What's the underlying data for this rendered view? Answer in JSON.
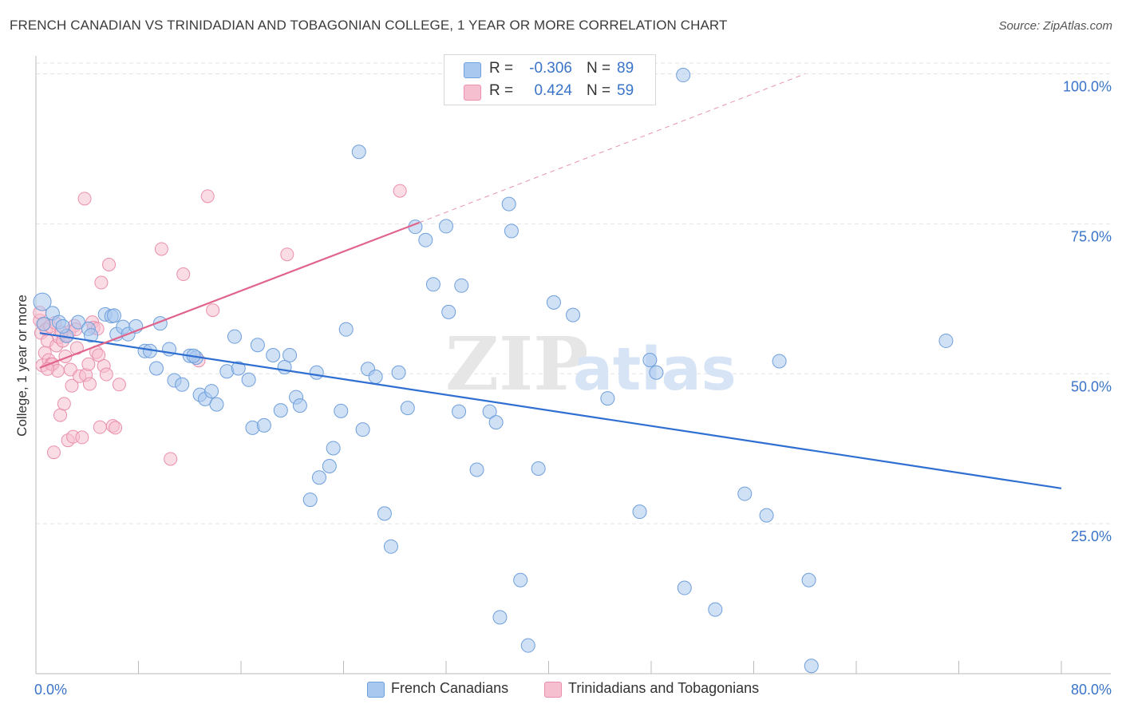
{
  "header": {
    "title": "FRENCH CANADIAN VS TRINIDADIAN AND TOBAGONIAN COLLEGE, 1 YEAR OR MORE CORRELATION CHART",
    "source": "Source: ZipAtlas.com"
  },
  "legend_top": {
    "rows": [
      {
        "r_label": "R =",
        "r_value": "-0.306",
        "n_label": "N =",
        "n_value": "89"
      },
      {
        "r_label": "R =",
        "r_value": "0.424",
        "n_label": "N =",
        "n_value": "59"
      }
    ]
  },
  "legend_bottom": {
    "items": [
      "French Canadians",
      "Trinidadians and Tobagonians"
    ]
  },
  "watermark": {
    "zip": "ZIP",
    "atlas": "atlas"
  },
  "colors": {
    "blue_fill": "#a9c8ef",
    "blue_stroke": "#6f9fdb",
    "blue_line": "#2f6fd1",
    "pink_fill": "#f6bfd0",
    "pink_stroke": "#ea8fab",
    "pink_line": "#e0648b",
    "tick_text": "#3a74c8",
    "grid": "#e3e3e3"
  },
  "chart_data": {
    "type": "scatter",
    "title": "FRENCH CANADIAN VS TRINIDADIAN AND TOBAGONIAN COLLEGE, 1 YEAR OR MORE CORRELATION CHART",
    "xlabel": "",
    "ylabel": "College, 1 year or more",
    "xlim": [
      0,
      80
    ],
    "ylim": [
      0,
      103
    ],
    "x_tick_labels": [
      "0.0%",
      "80.0%"
    ],
    "y_ticks": [
      25,
      50,
      75,
      100
    ],
    "y_tick_labels": [
      "25.0%",
      "50.0%",
      "75.0%",
      "100.0%"
    ],
    "grid": true,
    "legend_position": "top-center",
    "series": [
      {
        "name": "French Canadians",
        "color": "#6f9fdb",
        "R": -0.306,
        "N": 89,
        "trend": {
          "x": [
            0.3,
            80
          ],
          "y": [
            56.8,
            30.9
          ]
        },
        "points": [
          [
            0.5,
            62.0
          ],
          [
            0.6,
            58.3
          ],
          [
            1.3,
            60.1
          ],
          [
            1.8,
            58.6
          ],
          [
            2.4,
            56.3
          ],
          [
            3.3,
            58.6
          ],
          [
            4.1,
            57.5
          ],
          [
            4.3,
            56.4
          ],
          [
            5.4,
            59.9
          ],
          [
            5.9,
            59.6
          ],
          [
            6.3,
            56.6
          ],
          [
            6.8,
            57.8
          ],
          [
            7.2,
            56.6
          ],
          [
            7.8,
            57.9
          ],
          [
            8.5,
            53.8
          ],
          [
            8.9,
            53.8
          ],
          [
            9.4,
            50.9
          ],
          [
            9.7,
            58.4
          ],
          [
            10.4,
            54.1
          ],
          [
            10.8,
            48.9
          ],
          [
            11.4,
            48.2
          ],
          [
            12.0,
            53.0
          ],
          [
            12.5,
            52.7
          ],
          [
            12.8,
            46.5
          ],
          [
            13.2,
            45.8
          ],
          [
            13.7,
            47.1
          ],
          [
            14.1,
            44.9
          ],
          [
            14.9,
            50.4
          ],
          [
            15.5,
            56.2
          ],
          [
            15.8,
            50.9
          ],
          [
            16.6,
            49.0
          ],
          [
            16.9,
            41.0
          ],
          [
            17.3,
            54.8
          ],
          [
            17.8,
            41.4
          ],
          [
            18.5,
            53.1
          ],
          [
            19.1,
            43.9
          ],
          [
            19.4,
            51.1
          ],
          [
            19.8,
            53.1
          ],
          [
            20.3,
            46.1
          ],
          [
            20.6,
            44.7
          ],
          [
            21.4,
            29.0
          ],
          [
            21.9,
            50.2
          ],
          [
            22.1,
            32.7
          ],
          [
            22.9,
            34.6
          ],
          [
            23.2,
            37.6
          ],
          [
            23.8,
            43.8
          ],
          [
            24.2,
            57.4
          ],
          [
            25.2,
            87.0
          ],
          [
            25.5,
            40.7
          ],
          [
            25.9,
            50.8
          ],
          [
            26.5,
            49.5
          ],
          [
            27.2,
            26.7
          ],
          [
            27.7,
            21.2
          ],
          [
            28.3,
            50.2
          ],
          [
            29.0,
            44.3
          ],
          [
            29.6,
            74.5
          ],
          [
            30.4,
            72.3
          ],
          [
            31.0,
            64.9
          ],
          [
            32.0,
            74.6
          ],
          [
            32.2,
            60.3
          ],
          [
            33.0,
            43.7
          ],
          [
            33.2,
            64.7
          ],
          [
            34.4,
            34.0
          ],
          [
            35.4,
            43.7
          ],
          [
            35.9,
            41.9
          ],
          [
            36.2,
            9.4
          ],
          [
            36.9,
            78.3
          ],
          [
            37.1,
            73.8
          ],
          [
            37.8,
            15.6
          ],
          [
            38.4,
            4.7
          ],
          [
            39.2,
            34.2
          ],
          [
            40.4,
            61.9
          ],
          [
            41.9,
            59.8
          ],
          [
            44.6,
            45.9
          ],
          [
            47.1,
            27.0
          ],
          [
            47.9,
            52.3
          ],
          [
            48.4,
            50.2
          ],
          [
            50.5,
            99.8
          ],
          [
            50.6,
            14.3
          ],
          [
            53.0,
            10.7
          ],
          [
            55.3,
            30.0
          ],
          [
            57.0,
            26.4
          ],
          [
            58.0,
            52.1
          ],
          [
            60.3,
            15.6
          ],
          [
            60.5,
            1.3
          ],
          [
            71.0,
            55.5
          ],
          [
            2.1,
            57.9
          ],
          [
            6.1,
            59.7
          ],
          [
            12.3,
            53.0
          ]
        ]
      },
      {
        "name": "Trinidadians and Tobagonians",
        "color": "#ea8fab",
        "R": 0.424,
        "N": 59,
        "trend": {
          "x": [
            0.3,
            29.9
          ],
          "y": [
            51.0,
            75.2
          ]
        },
        "trend_extension": {
          "x": [
            29.9,
            60
          ],
          "y": [
            75.2,
            100
          ]
        },
        "points": [
          [
            0.3,
            58.9
          ],
          [
            0.4,
            56.8
          ],
          [
            0.5,
            51.4
          ],
          [
            0.6,
            58.3
          ],
          [
            0.7,
            53.5
          ],
          [
            0.8,
            57.4
          ],
          [
            0.9,
            55.5
          ],
          [
            1.0,
            52.3
          ],
          [
            1.1,
            57.9
          ],
          [
            1.2,
            51.6
          ],
          [
            1.3,
            51.6
          ],
          [
            1.5,
            58.5
          ],
          [
            1.6,
            54.7
          ],
          [
            1.7,
            50.5
          ],
          [
            1.8,
            56.1
          ],
          [
            1.9,
            43.1
          ],
          [
            2.1,
            55.5
          ],
          [
            2.2,
            45.0
          ],
          [
            2.3,
            52.9
          ],
          [
            2.4,
            56.4
          ],
          [
            2.5,
            38.9
          ],
          [
            2.6,
            57.0
          ],
          [
            2.7,
            50.7
          ],
          [
            2.8,
            48.0
          ],
          [
            2.9,
            39.5
          ],
          [
            3.0,
            58.0
          ],
          [
            3.1,
            57.4
          ],
          [
            3.2,
            54.3
          ],
          [
            3.4,
            49.6
          ],
          [
            3.6,
            39.4
          ],
          [
            3.8,
            79.2
          ],
          [
            3.9,
            49.8
          ],
          [
            4.1,
            51.6
          ],
          [
            4.2,
            48.3
          ],
          [
            4.4,
            58.6
          ],
          [
            4.5,
            57.7
          ],
          [
            4.7,
            53.6
          ],
          [
            4.9,
            53.1
          ],
          [
            5.0,
            41.1
          ],
          [
            5.1,
            65.2
          ],
          [
            5.3,
            51.3
          ],
          [
            5.5,
            49.9
          ],
          [
            5.7,
            68.2
          ],
          [
            6.0,
            41.3
          ],
          [
            6.2,
            41.0
          ],
          [
            6.5,
            48.2
          ],
          [
            9.8,
            70.8
          ],
          [
            10.5,
            35.8
          ],
          [
            11.5,
            66.6
          ],
          [
            12.7,
            52.2
          ],
          [
            13.4,
            79.6
          ],
          [
            13.8,
            60.6
          ],
          [
            19.6,
            69.9
          ],
          [
            28.4,
            80.5
          ],
          [
            1.4,
            36.9
          ],
          [
            0.9,
            50.8
          ],
          [
            2.0,
            56.9
          ],
          [
            4.8,
            57.5
          ],
          [
            0.3,
            60.2
          ]
        ]
      }
    ]
  }
}
